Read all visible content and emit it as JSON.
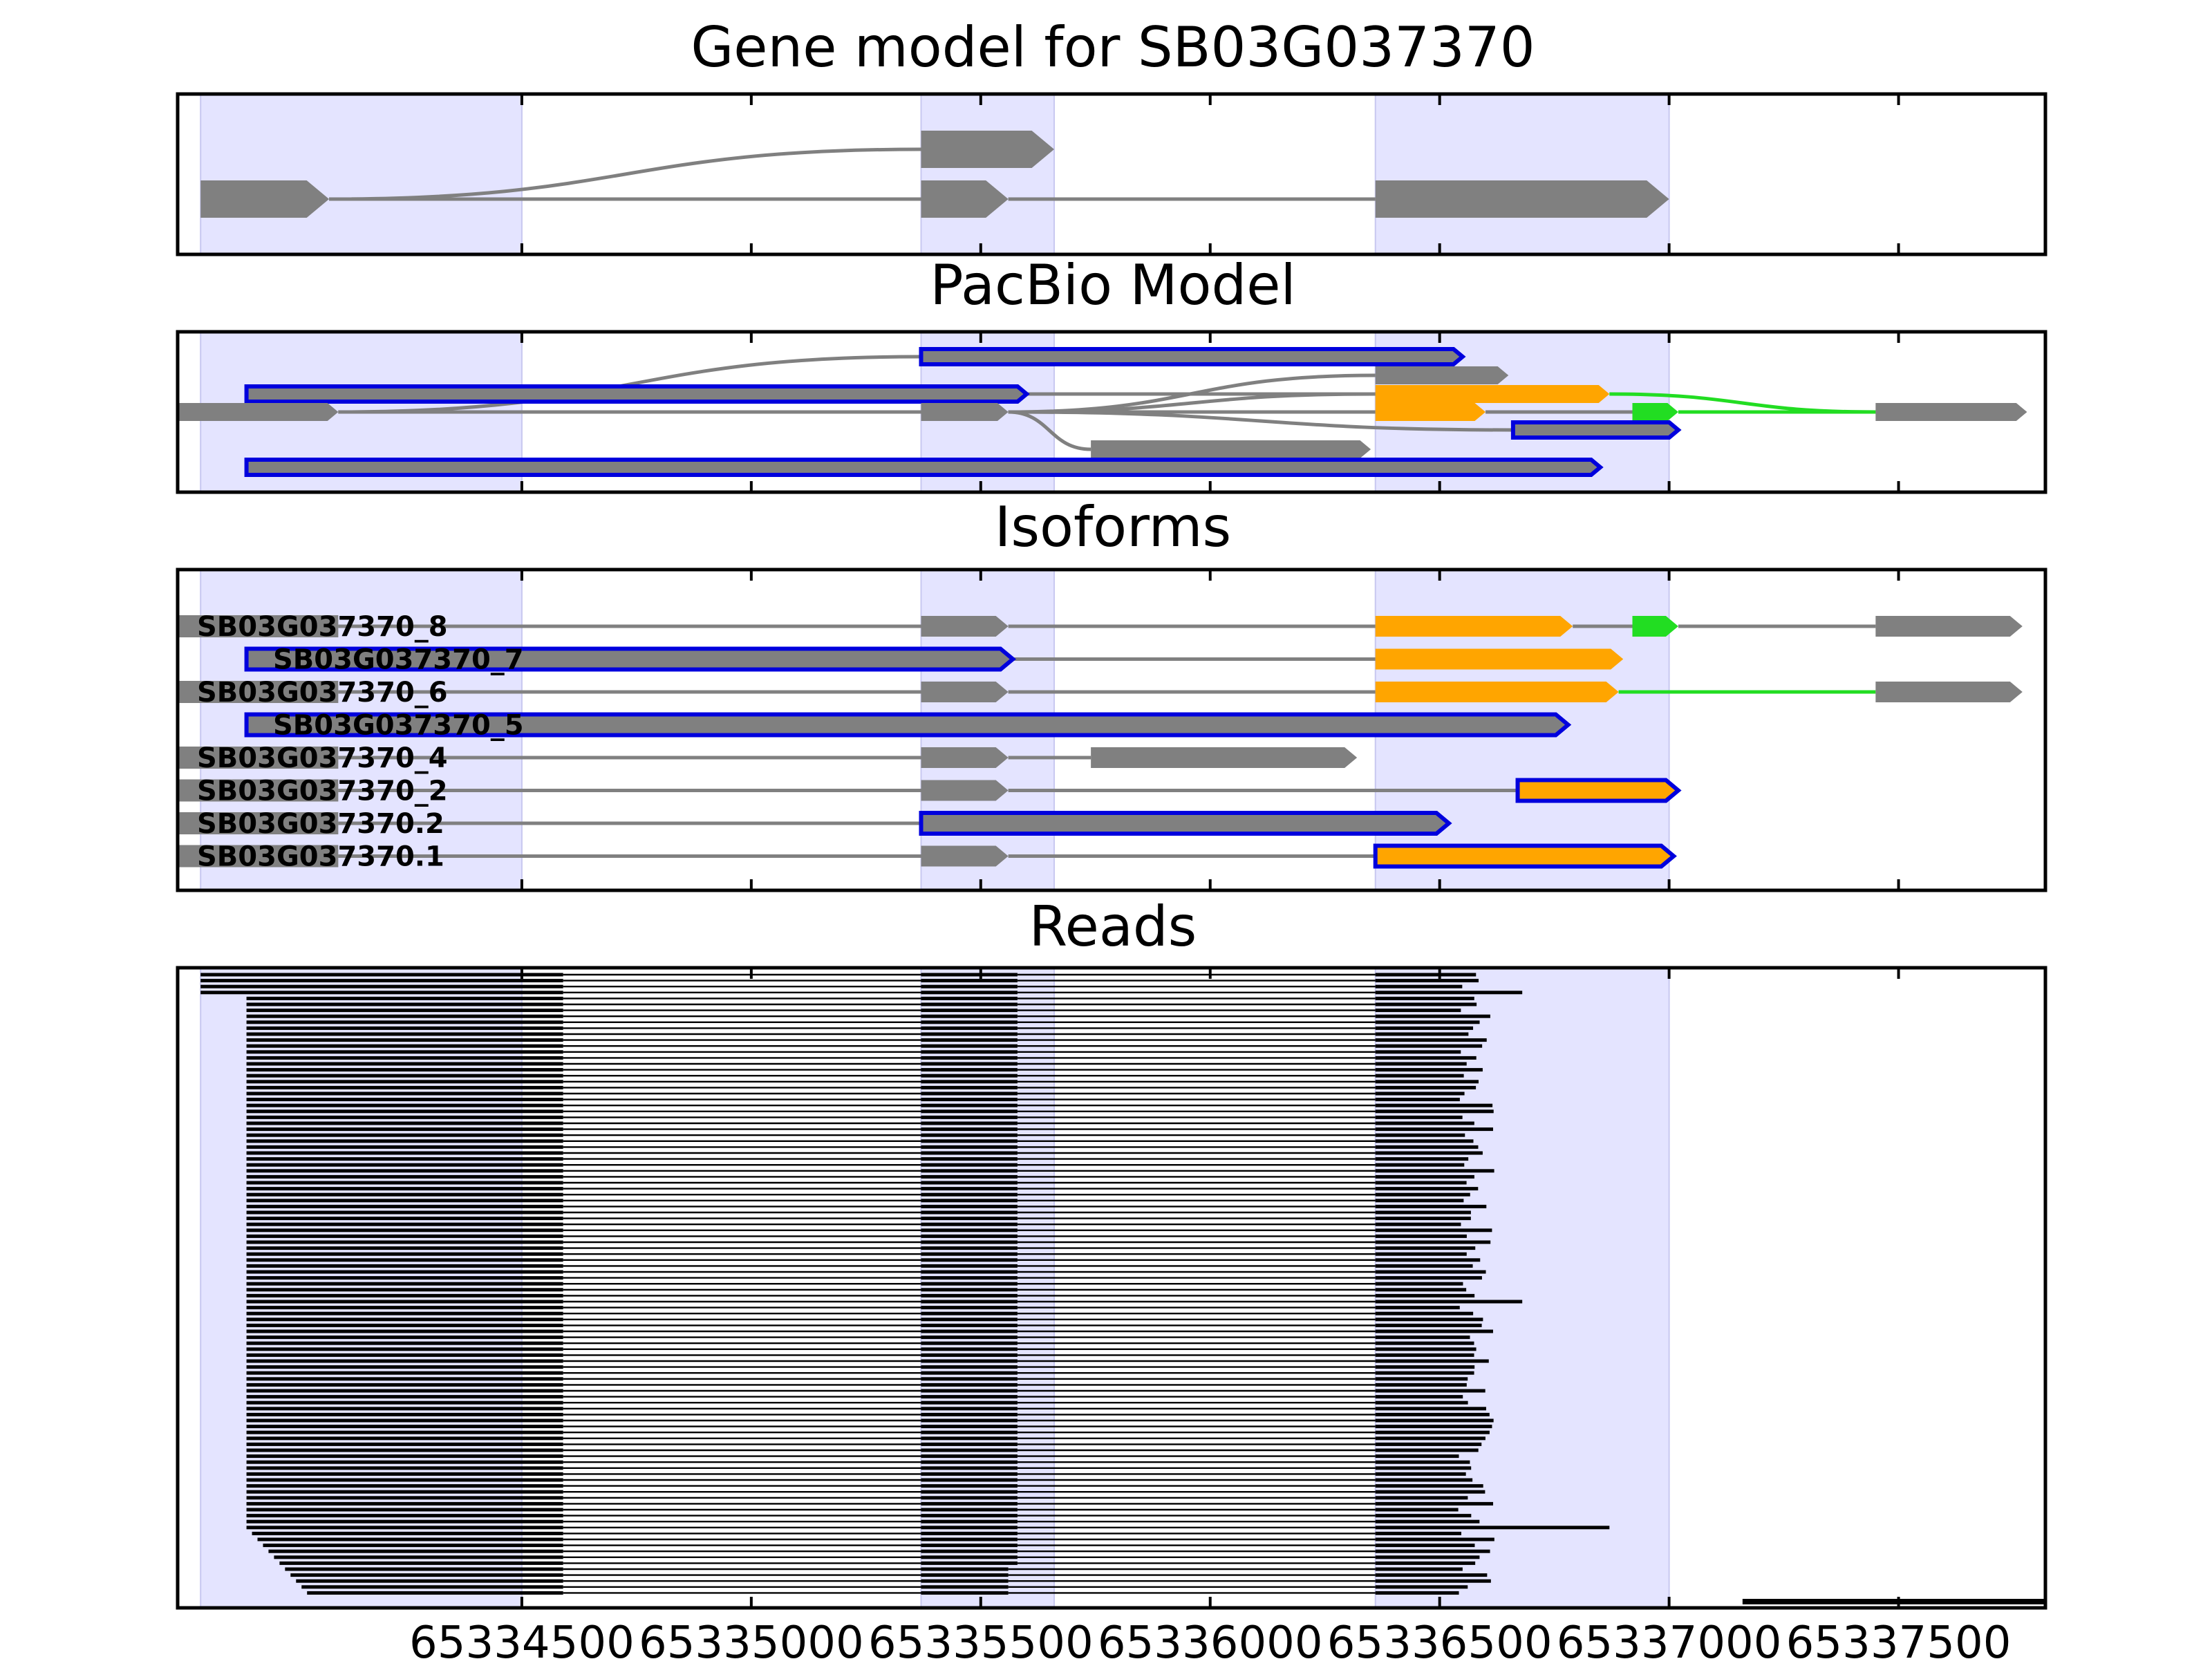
{
  "panels": [
    {
      "id": "gene",
      "title": "Gene model for SB03G037370"
    },
    {
      "id": "pacbio",
      "title": "PacBio Model"
    },
    {
      "id": "isoforms",
      "title": "Isoforms"
    },
    {
      "id": "reads",
      "title": "Reads"
    }
  ],
  "x_axis": {
    "range": [
      65333750,
      65337820
    ],
    "ticks": [
      65334500,
      65335000,
      65335500,
      65336000,
      65336500,
      65337000,
      65337500
    ],
    "tick_labels": [
      "65334500",
      "65335000",
      "65335500",
      "65336000",
      "65336500",
      "65337000",
      "65337500"
    ]
  },
  "colors": {
    "exon_gray": "#808080",
    "intron": "#808080",
    "shade": "#e4e4ff",
    "shade_edge": "#c8c8f0",
    "blue": "#0000dd",
    "orange": "#ffa500",
    "green": "#22dd22",
    "read": "#000000"
  },
  "shaded_regions": [
    [
      65333800,
      65334500
    ],
    [
      65335370,
      65335660
    ],
    [
      65336360,
      65337000
    ]
  ],
  "gene_model": [
    {
      "exons": [
        [
          65333800,
          65334080
        ],
        [
          65335370,
          65335660
        ]
      ],
      "arrow": true
    },
    {
      "exons": [
        [
          65333800,
          65334080
        ],
        [
          65335370,
          65335560
        ],
        [
          65336360,
          65337000
        ]
      ],
      "arrow": true
    }
  ],
  "pacbio_model": [
    {
      "exons": [
        [
          65335370,
          65336550
        ]
      ],
      "color": "blue"
    },
    {
      "exons": [
        [
          65336360,
          65336650
        ]
      ],
      "color": "gray"
    },
    {
      "exons": [
        [
          65333900,
          65335600
        ]
      ],
      "color": "blue"
    },
    {
      "exons": [
        [
          65336360,
          65336870
        ]
      ],
      "color": "orange"
    },
    {
      "exons": [
        [
          65333750,
          65334100
        ],
        [
          65335370,
          65335560
        ],
        [
          65336360,
          65336600
        ],
        [
          65336920,
          65337020
        ],
        [
          65337450,
          65337780
        ]
      ],
      "color": "gray"
    },
    {
      "exons": [
        [
          65336660,
          65337020
        ]
      ],
      "color": "blue"
    },
    {
      "exons": [
        [
          65335740,
          65336350
        ]
      ],
      "color": "gray"
    },
    {
      "exons": [
        [
          65333900,
          65336850
        ]
      ],
      "color": "blue"
    }
  ],
  "isoforms": [
    {
      "label": "SB03G037370_8",
      "exons": [
        [
          65333750,
          65334100,
          "gray"
        ],
        [
          65335370,
          65335560,
          "gray"
        ],
        [
          65336360,
          65336790,
          "orange"
        ],
        [
          65336920,
          65337020,
          "green"
        ],
        [
          65337450,
          65337770,
          "gray"
        ]
      ]
    },
    {
      "label": "SB03G037370_7",
      "exons": [
        [
          65333900,
          65335570,
          "blue"
        ],
        [
          65336360,
          65336900,
          "orange"
        ]
      ]
    },
    {
      "label": "SB03G037370_6",
      "exons": [
        [
          65333750,
          65334100,
          "gray"
        ],
        [
          65335370,
          65335560,
          "gray"
        ],
        [
          65336360,
          65336890,
          "orange"
        ],
        [
          65337450,
          65337770,
          "gray"
        ]
      ]
    },
    {
      "label": "SB03G037370_5",
      "exons": [
        [
          65333900,
          65336780,
          "blue"
        ]
      ]
    },
    {
      "label": "SB03G037370_4",
      "exons": [
        [
          65333750,
          65334100,
          "gray"
        ],
        [
          65335370,
          65335560,
          "gray"
        ],
        [
          65335740,
          65336320,
          "gray"
        ]
      ]
    },
    {
      "label": "SB03G037370_2",
      "exons": [
        [
          65333750,
          65334100,
          "gray"
        ],
        [
          65335370,
          65335560,
          "gray"
        ],
        [
          65336670,
          65337020,
          "orangeblue"
        ]
      ]
    },
    {
      "label": "SB03G037370.2",
      "exons": [
        [
          65333750,
          65334100,
          "gray"
        ],
        [
          65335370,
          65336520,
          "grayblue"
        ]
      ]
    },
    {
      "label": "SB03G037370.1",
      "exons": [
        [
          65333750,
          65334100,
          "gray"
        ],
        [
          65335370,
          65335560,
          "gray"
        ],
        [
          65336360,
          65337010,
          "orangeblue"
        ]
      ]
    }
  ],
  "reads": {
    "count": 105,
    "exon1_start_first": 65333800,
    "exon1_start_main": 65333900,
    "exon1_end": 65334590,
    "exon2": [
      65335370,
      65335580
    ],
    "exon3_start": 65336360,
    "outlier_read": [
      65337160,
      65337820
    ]
  }
}
